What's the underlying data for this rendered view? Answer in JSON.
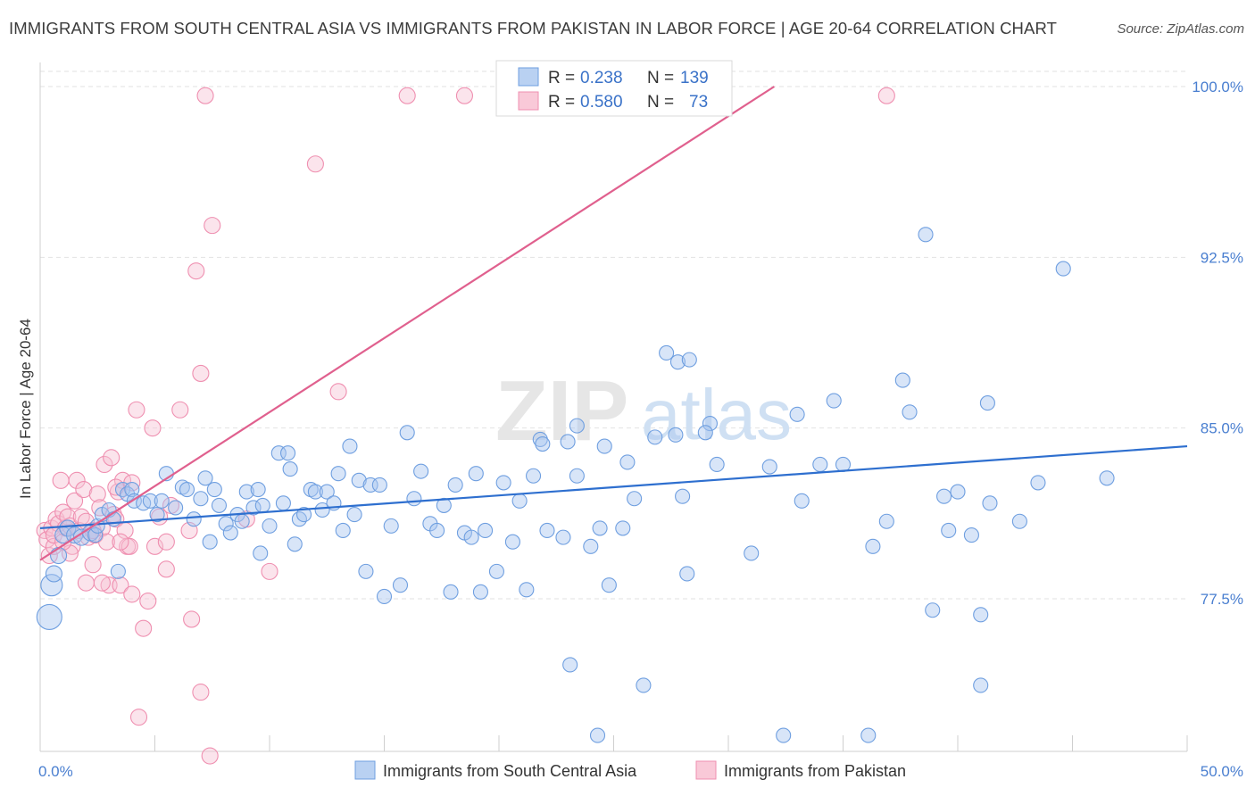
{
  "title": "IMMIGRANTS FROM SOUTH CENTRAL ASIA VS IMMIGRANTS FROM PAKISTAN IN LABOR FORCE | AGE 20-64 CORRELATION CHART",
  "source": "Source: ZipAtlas.com",
  "watermark": {
    "zip": "ZIP",
    "atlas": "atlas"
  },
  "chart_data": {
    "type": "scatter",
    "title": "IMMIGRANTS FROM SOUTH CENTRAL ASIA VS IMMIGRANTS FROM PAKISTAN IN LABOR FORCE | AGE 20-64 CORRELATION CHART",
    "xlabel": "",
    "ylabel": "In Labor Force | Age 20-64",
    "xlim": [
      0,
      50
    ],
    "ylim": [
      71.2,
      101.5
    ],
    "x_tick_labels": [
      "0.0%",
      "50.0%"
    ],
    "y_ticks": [
      77.5,
      85.0,
      92.5,
      100.0
    ],
    "y_tick_labels": [
      "77.5%",
      "85.0%",
      "92.5%",
      "100.0%"
    ],
    "grid": true,
    "legend_position": "top-center",
    "series": [
      {
        "name": "Immigrants from South Central Asia",
        "color": "#6f9fe0",
        "fill": "#a9c6ef",
        "line_color": "#2e6fcf",
        "R": "0.238",
        "N": "139",
        "trend": {
          "x": [
            0,
            50
          ],
          "y": [
            80.6,
            84.2
          ]
        },
        "points": [
          [
            0.4,
            76.7,
            14
          ],
          [
            0.5,
            78.1,
            12
          ],
          [
            0.6,
            78.6,
            9
          ],
          [
            0.8,
            79.4,
            9
          ],
          [
            1.0,
            80.3,
            9
          ],
          [
            1.2,
            80.6,
            9
          ],
          [
            1.5,
            80.3,
            9
          ],
          [
            1.8,
            80.2,
            9
          ],
          [
            2.2,
            80.4,
            9
          ],
          [
            2.4,
            80.3,
            8
          ],
          [
            2.5,
            80.7,
            8
          ],
          [
            2.7,
            81.2,
            8
          ],
          [
            3.0,
            81.4,
            8
          ],
          [
            3.2,
            81.0,
            8
          ],
          [
            3.4,
            78.7,
            8
          ],
          [
            3.6,
            82.3,
            8
          ],
          [
            3.8,
            82.1,
            8
          ],
          [
            4.0,
            82.3,
            8
          ],
          [
            4.1,
            81.8,
            8
          ],
          [
            4.5,
            81.7,
            8
          ],
          [
            4.8,
            81.8,
            8
          ],
          [
            5.1,
            81.2,
            8
          ],
          [
            5.3,
            81.8,
            8
          ],
          [
            5.5,
            83.0,
            8
          ],
          [
            5.9,
            81.5,
            8
          ],
          [
            6.2,
            82.4,
            8
          ],
          [
            6.4,
            82.3,
            8
          ],
          [
            6.7,
            81.0,
            8
          ],
          [
            7.0,
            81.9,
            8
          ],
          [
            7.2,
            82.8,
            8
          ],
          [
            7.4,
            80.0,
            8
          ],
          [
            7.6,
            82.3,
            8
          ],
          [
            7.8,
            81.6,
            8
          ],
          [
            8.1,
            80.8,
            8
          ],
          [
            8.3,
            80.4,
            8
          ],
          [
            8.6,
            81.2,
            8
          ],
          [
            8.8,
            80.9,
            8
          ],
          [
            9.0,
            82.2,
            8
          ],
          [
            9.3,
            81.5,
            8
          ],
          [
            9.5,
            82.3,
            8
          ],
          [
            9.7,
            81.6,
            8
          ],
          [
            9.6,
            79.5,
            8
          ],
          [
            10.0,
            80.7,
            8
          ],
          [
            10.4,
            83.9,
            8
          ],
          [
            10.6,
            81.7,
            8
          ],
          [
            10.8,
            83.9,
            8
          ],
          [
            10.9,
            83.2,
            8
          ],
          [
            11.1,
            79.9,
            8
          ],
          [
            11.3,
            81.0,
            8
          ],
          [
            11.5,
            81.2,
            8
          ],
          [
            11.8,
            82.3,
            8
          ],
          [
            12.0,
            82.2,
            8
          ],
          [
            12.3,
            81.4,
            8
          ],
          [
            12.5,
            82.2,
            8
          ],
          [
            12.8,
            81.7,
            8
          ],
          [
            13.0,
            83.0,
            8
          ],
          [
            13.2,
            80.5,
            8
          ],
          [
            13.5,
            84.2,
            8
          ],
          [
            13.7,
            81.2,
            8
          ],
          [
            13.9,
            82.7,
            8
          ],
          [
            14.2,
            78.7,
            8
          ],
          [
            14.4,
            82.5,
            8
          ],
          [
            14.8,
            82.5,
            8
          ],
          [
            15.0,
            77.6,
            8
          ],
          [
            15.3,
            80.7,
            8
          ],
          [
            15.7,
            78.1,
            8
          ],
          [
            16.0,
            84.8,
            8
          ],
          [
            16.3,
            81.9,
            8
          ],
          [
            16.6,
            83.1,
            8
          ],
          [
            17.0,
            80.8,
            8
          ],
          [
            17.3,
            80.5,
            8
          ],
          [
            17.6,
            81.6,
            8
          ],
          [
            17.9,
            77.8,
            8
          ],
          [
            18.1,
            82.5,
            8
          ],
          [
            18.5,
            80.4,
            8
          ],
          [
            18.8,
            80.2,
            8
          ],
          [
            19.0,
            83.0,
            8
          ],
          [
            19.4,
            80.5,
            8
          ],
          [
            19.2,
            77.8,
            8
          ],
          [
            20.2,
            82.6,
            8
          ],
          [
            19.9,
            78.7,
            8
          ],
          [
            20.6,
            80.0,
            8
          ],
          [
            20.9,
            81.8,
            8
          ],
          [
            21.2,
            77.9,
            8
          ],
          [
            21.5,
            82.9,
            8
          ],
          [
            21.8,
            84.5,
            8
          ],
          [
            21.9,
            84.3,
            8
          ],
          [
            22.1,
            80.5,
            8
          ],
          [
            22.8,
            80.2,
            8
          ],
          [
            23.0,
            84.4,
            8
          ],
          [
            23.4,
            85.1,
            8
          ],
          [
            23.1,
            74.6,
            8
          ],
          [
            23.4,
            82.9,
            8
          ],
          [
            24.0,
            79.8,
            8
          ],
          [
            24.3,
            71.5,
            8
          ],
          [
            24.6,
            84.2,
            8
          ],
          [
            24.4,
            80.6,
            8
          ],
          [
            25.4,
            80.6,
            8
          ],
          [
            24.8,
            78.1,
            8
          ],
          [
            25.6,
            83.5,
            8
          ],
          [
            25.9,
            81.9,
            8
          ],
          [
            26.3,
            73.7,
            8
          ],
          [
            26.8,
            84.6,
            8
          ],
          [
            27.3,
            88.3,
            8
          ],
          [
            27.7,
            84.7,
            8
          ],
          [
            27.8,
            87.9,
            8
          ],
          [
            28.0,
            82.0,
            8
          ],
          [
            28.3,
            88.0,
            8
          ],
          [
            28.2,
            78.6,
            8
          ],
          [
            29.2,
            85.2,
            8
          ],
          [
            29.5,
            83.4,
            8
          ],
          [
            29.0,
            84.8,
            8
          ],
          [
            31.8,
            83.3,
            8
          ],
          [
            31.0,
            79.5,
            8
          ],
          [
            32.4,
            71.5,
            8
          ],
          [
            33.2,
            81.8,
            8
          ],
          [
            33.0,
            85.6,
            8
          ],
          [
            34.0,
            83.4,
            8
          ],
          [
            34.6,
            86.2,
            8
          ],
          [
            36.3,
            79.8,
            8
          ],
          [
            36.9,
            80.9,
            8
          ],
          [
            37.6,
            87.1,
            8
          ],
          [
            37.9,
            85.7,
            8
          ],
          [
            36.1,
            71.5,
            8
          ],
          [
            35.0,
            83.4,
            8
          ],
          [
            38.6,
            93.5,
            8
          ],
          [
            38.9,
            77.0,
            8
          ],
          [
            39.4,
            82.0,
            8
          ],
          [
            39.6,
            80.5,
            8
          ],
          [
            40.0,
            82.2,
            8
          ],
          [
            40.6,
            80.3,
            8
          ],
          [
            41.0,
            76.8,
            8
          ],
          [
            41.3,
            86.1,
            8
          ],
          [
            41.4,
            81.7,
            8
          ],
          [
            42.7,
            80.9,
            8
          ],
          [
            43.5,
            82.6,
            8
          ],
          [
            44.6,
            92.0,
            8
          ],
          [
            46.5,
            82.8,
            8
          ],
          [
            41.0,
            73.7,
            8
          ]
        ]
      },
      {
        "name": "Immigrants from Pakistan",
        "color": "#ef8fb0",
        "fill": "#f7c3d5",
        "line_color": "#e0608e",
        "R": "0.580",
        "N": "73",
        "trend": {
          "x": [
            0,
            32
          ],
          "y": 79.2,
          "y_end": 100.0
        },
        "points": [
          [
            0.2,
            80.5,
            9
          ],
          [
            0.3,
            80.1,
            9
          ],
          [
            0.4,
            79.4,
            9
          ],
          [
            0.5,
            80.6,
            9
          ],
          [
            0.6,
            79.8,
            9
          ],
          [
            0.7,
            81.0,
            9
          ],
          [
            0.8,
            80.8,
            9
          ],
          [
            0.9,
            82.7,
            9
          ],
          [
            1.0,
            81.3,
            9
          ],
          [
            1.1,
            80.6,
            9
          ],
          [
            1.2,
            81.1,
            9
          ],
          [
            1.3,
            80.7,
            9
          ],
          [
            1.4,
            79.8,
            9
          ],
          [
            1.5,
            81.8,
            9
          ],
          [
            1.6,
            82.7,
            9
          ],
          [
            1.7,
            80.5,
            9
          ],
          [
            1.8,
            81.1,
            9
          ],
          [
            1.9,
            82.3,
            9
          ],
          [
            2.0,
            80.9,
            9
          ],
          [
            2.1,
            80.2,
            9
          ],
          [
            2.3,
            79.0,
            9
          ],
          [
            2.4,
            80.3,
            9
          ],
          [
            2.5,
            82.1,
            9
          ],
          [
            2.6,
            81.5,
            9
          ],
          [
            2.7,
            80.6,
            9
          ],
          [
            2.8,
            83.4,
            9
          ],
          [
            2.9,
            80.0,
            9
          ],
          [
            3.0,
            78.1,
            9
          ],
          [
            3.1,
            83.7,
            9
          ],
          [
            3.2,
            81.2,
            9
          ],
          [
            3.3,
            81.0,
            9
          ],
          [
            3.4,
            82.2,
            9
          ],
          [
            3.5,
            78.1,
            9
          ],
          [
            3.6,
            82.7,
            9
          ],
          [
            3.7,
            80.5,
            9
          ],
          [
            3.8,
            79.8,
            9
          ],
          [
            3.9,
            79.8,
            9
          ],
          [
            4.0,
            77.7,
            9
          ],
          [
            4.2,
            85.8,
            9
          ],
          [
            4.3,
            72.3,
            9
          ],
          [
            4.5,
            76.2,
            9
          ],
          [
            4.7,
            77.4,
            9
          ],
          [
            4.9,
            85.0,
            9
          ],
          [
            5.0,
            79.8,
            9
          ],
          [
            5.2,
            81.1,
            9
          ],
          [
            5.5,
            78.8,
            9
          ],
          [
            5.7,
            81.6,
            9
          ],
          [
            6.1,
            85.8,
            9
          ],
          [
            6.6,
            76.6,
            9
          ],
          [
            6.8,
            91.9,
            9
          ],
          [
            7.0,
            87.4,
            9
          ],
          [
            7.2,
            99.6,
            9
          ],
          [
            7.5,
            93.9,
            9
          ],
          [
            7.0,
            73.4,
            9
          ],
          [
            7.4,
            70.6,
            9
          ],
          [
            9.0,
            81.0,
            9
          ],
          [
            10.0,
            78.7,
            9
          ],
          [
            12.0,
            96.6,
            9
          ],
          [
            13.0,
            86.6,
            9
          ],
          [
            16.0,
            99.6,
            9
          ],
          [
            18.5,
            99.6,
            9
          ],
          [
            2.0,
            78.2,
            9
          ],
          [
            1.3,
            79.5,
            9
          ],
          [
            0.6,
            80.3,
            9
          ],
          [
            2.3,
            80.5,
            9
          ],
          [
            5.5,
            80.0,
            9
          ],
          [
            6.5,
            80.5,
            9
          ],
          [
            3.5,
            80.0,
            9
          ],
          [
            1.0,
            80.0,
            9
          ],
          [
            4.0,
            82.6,
            9
          ],
          [
            2.7,
            78.2,
            9
          ],
          [
            3.3,
            82.4,
            9
          ],
          [
            36.9,
            99.6,
            9
          ]
        ]
      }
    ]
  },
  "legend": {
    "rows": [
      {
        "r_label": "R =",
        "r_value": "0.238",
        "n_label": "N =",
        "n_value": "139"
      },
      {
        "r_label": "R =",
        "r_value": "0.580",
        "n_label": "N =",
        "n_value": "73"
      }
    ]
  },
  "bottom_legend": [
    {
      "label": "Immigrants from South Central Asia"
    },
    {
      "label": "Immigrants from Pakistan"
    }
  ]
}
